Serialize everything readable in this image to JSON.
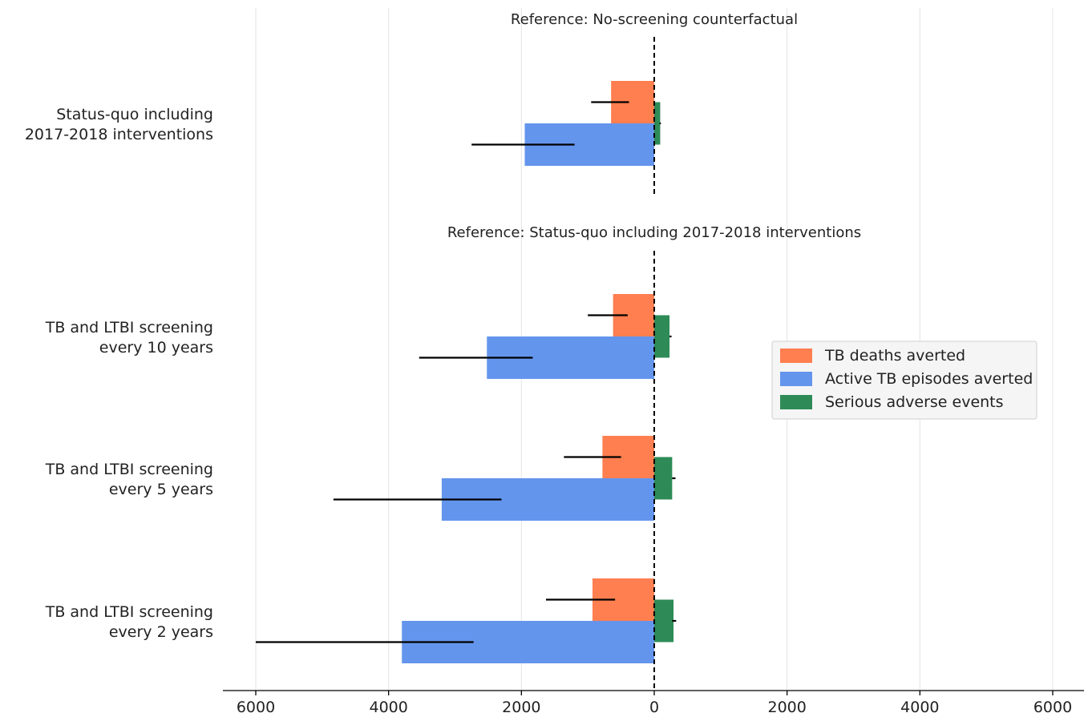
{
  "chart_data": {
    "type": "bar",
    "orientation": "horizontal",
    "xlim": [
      -6400,
      6200
    ],
    "xticks": [
      -6000,
      -4000,
      -2000,
      0,
      2000,
      4000,
      6000
    ],
    "xtick_labels": [
      "6000",
      "4000",
      "2000",
      "0",
      "2000",
      "4000",
      "6000"
    ],
    "grid": "vertical",
    "legend_placement": "center-right",
    "legend_entries": [
      {
        "label": "TB deaths averted",
        "color": "#ff7f50"
      },
      {
        "label": "Active TB episodes averted",
        "color": "#6495ed"
      },
      {
        "label": "Serious adverse events",
        "color": "#2e8b57"
      }
    ],
    "panels": [
      {
        "reference": "Reference: No-screening counterfactual"
      },
      {
        "reference": "Reference: Status-quo including 2017-2018 interventions"
      }
    ],
    "groups": [
      {
        "label_lines": [
          "Status-quo including",
          "2017-2018 interventions"
        ],
        "panel": 0,
        "deaths_averted": {
          "value": 650,
          "ci": [
            380,
            950
          ]
        },
        "episodes_averted": {
          "value": 1950,
          "ci": [
            1200,
            2750
          ]
        },
        "adverse_events": {
          "value": 90,
          "ci": [
            80,
            100
          ]
        }
      },
      {
        "label_lines": [
          "TB and LTBI screening",
          "every 10 years"
        ],
        "panel": 1,
        "deaths_averted": {
          "value": 620,
          "ci": [
            400,
            1000
          ]
        },
        "episodes_averted": {
          "value": 2520,
          "ci": [
            1830,
            3540
          ]
        },
        "adverse_events": {
          "value": 230,
          "ci": [
            230,
            260
          ]
        }
      },
      {
        "label_lines": [
          "TB and LTBI screening",
          "every 5 years"
        ],
        "panel": 1,
        "deaths_averted": {
          "value": 780,
          "ci": [
            500,
            1360
          ]
        },
        "episodes_averted": {
          "value": 3200,
          "ci": [
            2300,
            4830
          ]
        },
        "adverse_events": {
          "value": 270,
          "ci": [
            270,
            320
          ]
        }
      },
      {
        "label_lines": [
          "TB and LTBI screening",
          "every 2 years"
        ],
        "panel": 1,
        "deaths_averted": {
          "value": 930,
          "ci": [
            590,
            1630
          ]
        },
        "episodes_averted": {
          "value": 3800,
          "ci": [
            2720,
            6000
          ]
        },
        "adverse_events": {
          "value": 290,
          "ci": [
            270,
            330
          ]
        }
      }
    ]
  }
}
